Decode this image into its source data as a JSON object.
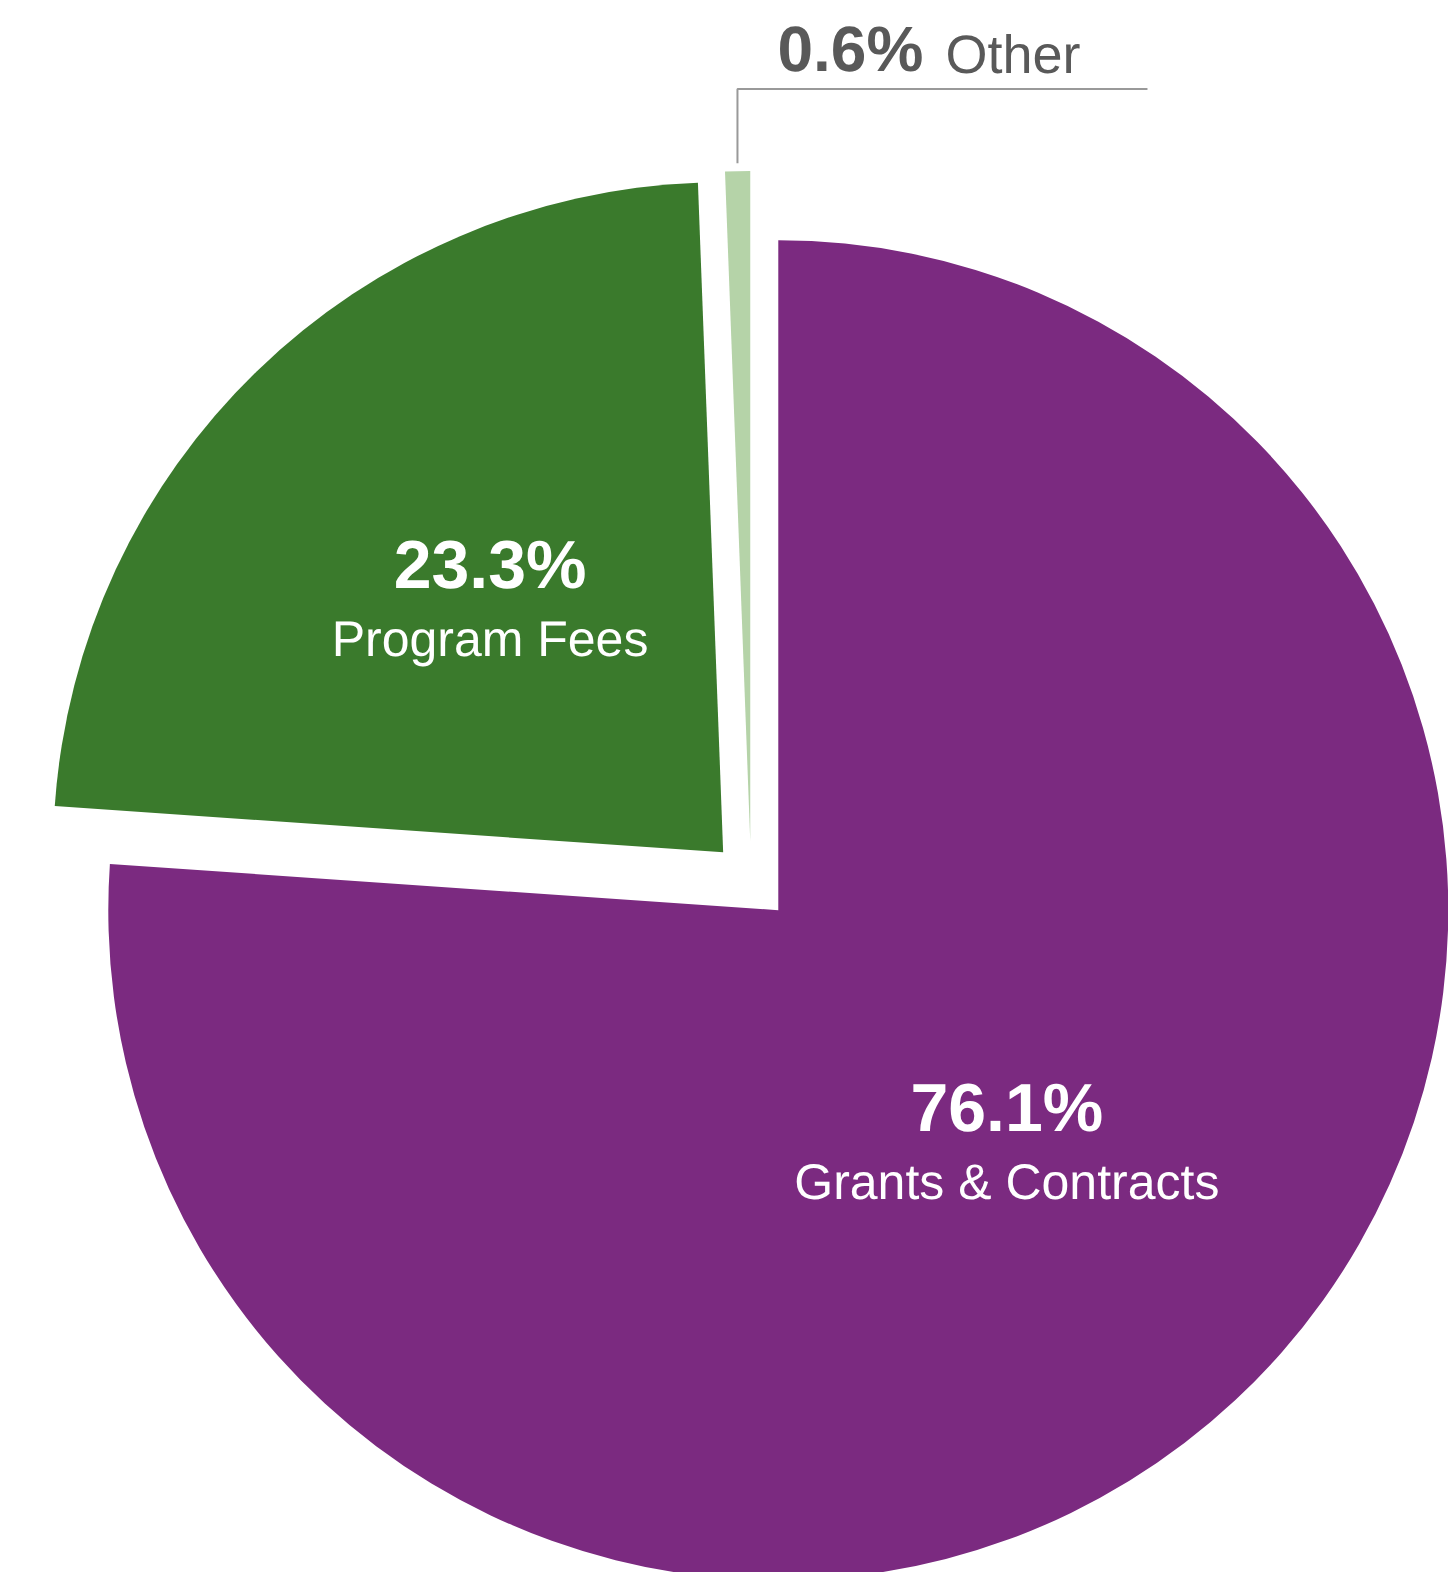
{
  "chart_data": {
    "type": "pie",
    "categories": [
      "Grants & Contracts",
      "Program Fees",
      "Other"
    ],
    "values": [
      76.1,
      23.3,
      0.6
    ],
    "colors": [
      "#7b2a80",
      "#3a7a2c",
      "#b5d3a8"
    ],
    "value_labels": [
      "76.1%",
      "23.3%",
      "0.6%"
    ]
  }
}
